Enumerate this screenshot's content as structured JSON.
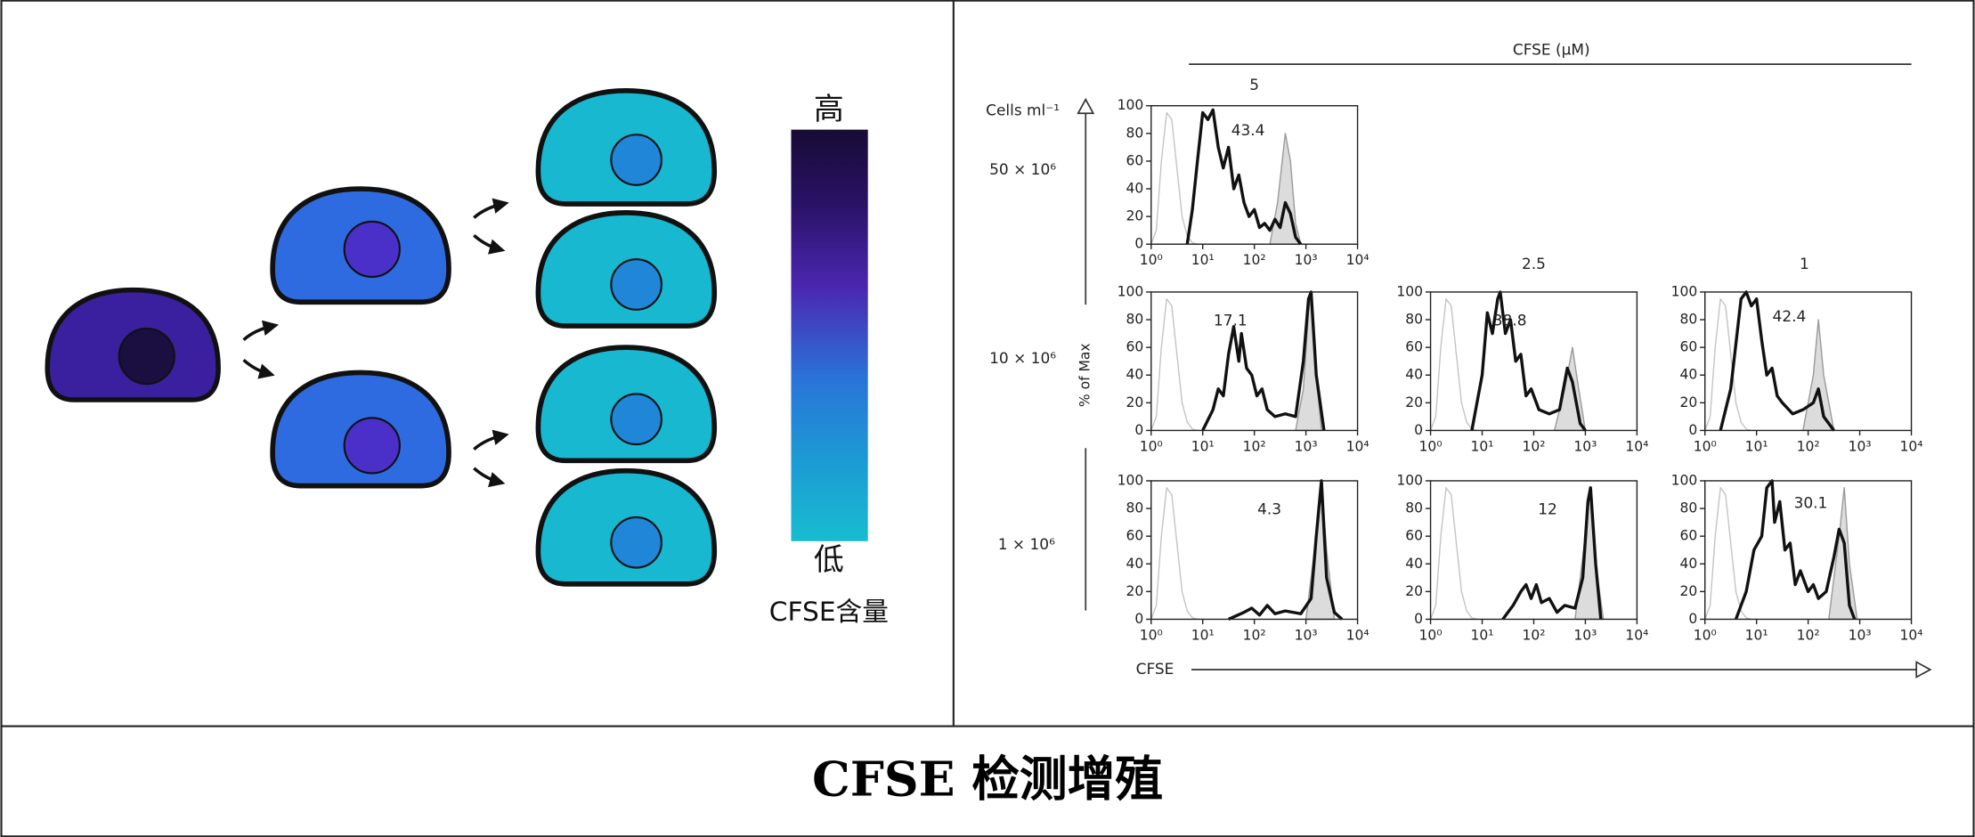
{
  "diagram": {
    "scale_high": "高",
    "scale_low": "低",
    "scale_title": "CFSE含量"
  },
  "figure": {
    "concentration_title": "CFSE (µM)",
    "concentrations": [
      "5",
      "2.5",
      "1"
    ],
    "density_title": "Cells ml⁻¹",
    "densities": [
      "50 × 10⁶",
      "10 × 10⁶",
      "1 × 10⁶"
    ],
    "y_label": "% of Max",
    "x_label": "CFSE"
  },
  "caption": "CFSE 检测增殖",
  "chart_data": [
    {
      "type": "line",
      "annotation": "43.4",
      "log_x": true,
      "xlim": [
        1,
        10000
      ],
      "xticks": [
        {
          "value": 1,
          "label": "10⁰"
        },
        {
          "value": 10,
          "label": "10¹"
        },
        {
          "value": 100,
          "label": "10²"
        },
        {
          "value": 1000,
          "label": "10³"
        },
        {
          "value": 10000,
          "label": "10⁴"
        }
      ],
      "ylim": [
        0,
        100
      ],
      "yticks": [
        0,
        20,
        40,
        60,
        80,
        100
      ],
      "series": [
        {
          "color": "#c4c4c4",
          "x": [
            1,
            1.26,
            1.58,
            2,
            2.51,
            3.16,
            3.98,
            5.01,
            6.31,
            7.94
          ],
          "values": [
            0,
            10,
            60,
            95,
            90,
            55,
            20,
            6,
            1,
            0
          ]
        },
        {
          "color": "#9a9a9a",
          "fill": "#dcdcdc",
          "x": [
            200,
            282,
            398,
            501,
            631,
            794
          ],
          "values": [
            0,
            30,
            80,
            60,
            15,
            0
          ]
        },
        {
          "color": "#111111",
          "x": [
            5,
            6.3,
            7.9,
            10,
            12.6,
            15.8,
            20,
            25,
            31.6,
            40,
            50,
            63,
            79,
            100,
            126,
            158,
            200,
            251,
            316,
            398,
            501,
            631,
            794
          ],
          "values": [
            0,
            25,
            60,
            95,
            90,
            97,
            70,
            55,
            70,
            40,
            50,
            30,
            20,
            25,
            12,
            15,
            10,
            18,
            12,
            30,
            22,
            5,
            0
          ]
        }
      ]
    },
    {
      "type": "line",
      "annotation": "17.1",
      "log_x": true,
      "xlim": [
        1,
        10000
      ],
      "xticks": [
        {
          "value": 1,
          "label": "10⁰"
        },
        {
          "value": 10,
          "label": "10¹"
        },
        {
          "value": 100,
          "label": "10²"
        },
        {
          "value": 1000,
          "label": "10³"
        },
        {
          "value": 10000,
          "label": "10⁴"
        }
      ],
      "ylim": [
        0,
        100
      ],
      "yticks": [
        0,
        20,
        40,
        60,
        80,
        100
      ],
      "series": [
        {
          "color": "#c4c4c4",
          "x": [
            1,
            1.26,
            1.58,
            2,
            2.51,
            3.16,
            3.98,
            5.01,
            6.31,
            7.94
          ],
          "values": [
            0,
            10,
            60,
            95,
            90,
            55,
            20,
            6,
            1,
            0
          ]
        },
        {
          "color": "#9a9a9a",
          "fill": "#dcdcdc",
          "x": [
            631,
            891,
            1122,
            1259,
            1585,
            1995
          ],
          "values": [
            0,
            30,
            85,
            100,
            40,
            0
          ]
        },
        {
          "color": "#111111",
          "x": [
            10,
            15.8,
            20,
            25.1,
            31.6,
            39.8,
            50.1,
            56.2,
            70.8,
            89.1,
            112,
            141,
            178,
            251,
            398,
            631,
            891,
            1122,
            1259,
            1585,
            2239
          ],
          "values": [
            0,
            15,
            30,
            25,
            55,
            75,
            50,
            70,
            45,
            40,
            25,
            30,
            15,
            10,
            12,
            10,
            50,
            95,
            100,
            40,
            0
          ]
        }
      ]
    },
    {
      "type": "line",
      "annotation": "38.8",
      "log_x": true,
      "xlim": [
        1,
        10000
      ],
      "xticks": [
        {
          "value": 1,
          "label": "10⁰"
        },
        {
          "value": 10,
          "label": "10¹"
        },
        {
          "value": 100,
          "label": "10²"
        },
        {
          "value": 1000,
          "label": "10³"
        },
        {
          "value": 10000,
          "label": "10⁴"
        }
      ],
      "ylim": [
        0,
        100
      ],
      "yticks": [
        0,
        20,
        40,
        60,
        80,
        100
      ],
      "series": [
        {
          "color": "#c4c4c4",
          "x": [
            1,
            1.26,
            1.58,
            2,
            2.51,
            3.16,
            3.98,
            5.01,
            6.31,
            7.94
          ],
          "values": [
            0,
            10,
            60,
            95,
            90,
            55,
            20,
            6,
            1,
            0
          ]
        },
        {
          "color": "#9a9a9a",
          "fill": "#dcdcdc",
          "x": [
            251,
            398,
            562,
            708,
            1000
          ],
          "values": [
            0,
            30,
            60,
            35,
            0
          ]
        },
        {
          "color": "#111111",
          "x": [
            6.31,
            10,
            12.6,
            15.8,
            20,
            22.4,
            28.2,
            35.5,
            44.7,
            56.2,
            70.8,
            89.1,
            126,
            200,
            316,
            447,
            562,
            794,
            1000
          ],
          "values": [
            0,
            40,
            85,
            70,
            95,
            100,
            70,
            80,
            50,
            55,
            25,
            30,
            15,
            12,
            15,
            45,
            35,
            5,
            0
          ]
        }
      ]
    },
    {
      "type": "line",
      "annotation": "42.4",
      "log_x": true,
      "xlim": [
        1,
        10000
      ],
      "xticks": [
        {
          "value": 1,
          "label": "10⁰"
        },
        {
          "value": 10,
          "label": "10¹"
        },
        {
          "value": 100,
          "label": "10²"
        },
        {
          "value": 1000,
          "label": "10³"
        },
        {
          "value": 10000,
          "label": "10⁴"
        }
      ],
      "ylim": [
        0,
        100
      ],
      "yticks": [
        0,
        20,
        40,
        60,
        80,
        100
      ],
      "series": [
        {
          "color": "#c4c4c4",
          "x": [
            1,
            1.26,
            1.58,
            2,
            2.51,
            3.16,
            3.98,
            5.01,
            6.31,
            7.94
          ],
          "values": [
            0,
            10,
            60,
            95,
            90,
            55,
            20,
            6,
            1,
            0
          ]
        },
        {
          "color": "#9a9a9a",
          "fill": "#dcdcdc",
          "x": [
            79.4,
            126,
            158,
            200,
            316
          ],
          "values": [
            0,
            40,
            80,
            40,
            0
          ]
        },
        {
          "color": "#111111",
          "x": [
            2,
            3.16,
            5.01,
            6.31,
            7.94,
            10,
            12.6,
            15.8,
            20,
            25.1,
            31.6,
            50.1,
            79.4,
            126,
            158,
            200,
            316
          ],
          "values": [
            0,
            30,
            95,
            100,
            90,
            95,
            65,
            40,
            45,
            25,
            20,
            12,
            15,
            20,
            30,
            10,
            0
          ]
        }
      ]
    },
    {
      "type": "line",
      "annotation": "4.3",
      "log_x": true,
      "xlim": [
        1,
        10000
      ],
      "xticks": [
        {
          "value": 1,
          "label": "10⁰"
        },
        {
          "value": 10,
          "label": "10¹"
        },
        {
          "value": 100,
          "label": "10²"
        },
        {
          "value": 1000,
          "label": "10³"
        },
        {
          "value": 10000,
          "label": "10⁴"
        }
      ],
      "ylim": [
        0,
        100
      ],
      "yticks": [
        0,
        20,
        40,
        60,
        80,
        100
      ],
      "series": [
        {
          "color": "#c4c4c4",
          "x": [
            1,
            1.26,
            1.58,
            2,
            2.51,
            3.16,
            3.98,
            5.01,
            6.31,
            7.94
          ],
          "values": [
            0,
            10,
            60,
            95,
            90,
            55,
            20,
            6,
            1,
            0
          ]
        },
        {
          "color": "#9a9a9a",
          "fill": "#dcdcdc",
          "x": [
            1000,
            1585,
            1995,
            2512,
            3548
          ],
          "values": [
            0,
            60,
            100,
            50,
            0
          ]
        },
        {
          "color": "#111111",
          "x": [
            31.6,
            63.1,
            89.1,
            126,
            178,
            251,
            398,
            794,
            1259,
            1585,
            1995,
            2512,
            3548,
            5012
          ],
          "values": [
            0,
            5,
            8,
            3,
            10,
            4,
            6,
            4,
            15,
            60,
            100,
            30,
            5,
            0
          ]
        }
      ]
    },
    {
      "type": "line",
      "annotation": "12",
      "log_x": true,
      "xlim": [
        1,
        10000
      ],
      "xticks": [
        {
          "value": 1,
          "label": "10⁰"
        },
        {
          "value": 10,
          "label": "10¹"
        },
        {
          "value": 100,
          "label": "10²"
        },
        {
          "value": 1000,
          "label": "10³"
        },
        {
          "value": 10000,
          "label": "10⁴"
        }
      ],
      "ylim": [
        0,
        100
      ],
      "yticks": [
        0,
        20,
        40,
        60,
        80,
        100
      ],
      "series": [
        {
          "color": "#c4c4c4",
          "x": [
            1,
            1.26,
            1.58,
            2,
            2.51,
            3.16,
            3.98,
            5.01,
            6.31,
            7.94
          ],
          "values": [
            0,
            10,
            60,
            95,
            90,
            55,
            20,
            6,
            1,
            0
          ]
        },
        {
          "color": "#9a9a9a",
          "fill": "#dcdcdc",
          "x": [
            631,
            1000,
            1259,
            1585,
            2239
          ],
          "values": [
            0,
            60,
            95,
            40,
            0
          ]
        },
        {
          "color": "#111111",
          "x": [
            25.1,
            39.8,
            56.2,
            70.8,
            89.1,
            112,
            141,
            200,
            282,
            398,
            631,
            891,
            1122,
            1259,
            1585,
            1995
          ],
          "values": [
            0,
            10,
            20,
            25,
            15,
            25,
            12,
            15,
            5,
            10,
            8,
            30,
            85,
            95,
            40,
            0
          ]
        }
      ]
    },
    {
      "type": "line",
      "annotation": "30.1",
      "log_x": true,
      "xlim": [
        1,
        10000
      ],
      "xticks": [
        {
          "value": 1,
          "label": "10⁰"
        },
        {
          "value": 10,
          "label": "10¹"
        },
        {
          "value": 100,
          "label": "10²"
        },
        {
          "value": 1000,
          "label": "10³"
        },
        {
          "value": 10000,
          "label": "10⁴"
        }
      ],
      "ylim": [
        0,
        100
      ],
      "yticks": [
        0,
        20,
        40,
        60,
        80,
        100
      ],
      "series": [
        {
          "color": "#c4c4c4",
          "x": [
            1,
            1.26,
            1.58,
            2,
            2.51,
            3.16,
            3.98,
            5.01,
            6.31,
            7.94
          ],
          "values": [
            0,
            10,
            60,
            95,
            90,
            55,
            20,
            6,
            1,
            0
          ]
        },
        {
          "color": "#9a9a9a",
          "fill": "#dcdcdc",
          "x": [
            251,
            398,
            501,
            631,
            891
          ],
          "values": [
            0,
            60,
            95,
            40,
            0
          ]
        },
        {
          "color": "#111111",
          "x": [
            3.98,
            6.31,
            8.91,
            12.6,
            15.8,
            20,
            22.4,
            28.2,
            35.5,
            44.7,
            56.2,
            70.8,
            100,
            126,
            158,
            224,
            316,
            398,
            501,
            631,
            794
          ],
          "values": [
            0,
            20,
            50,
            60,
            95,
            100,
            70,
            85,
            50,
            55,
            25,
            35,
            20,
            25,
            15,
            20,
            45,
            65,
            55,
            10,
            0
          ]
        }
      ]
    }
  ]
}
